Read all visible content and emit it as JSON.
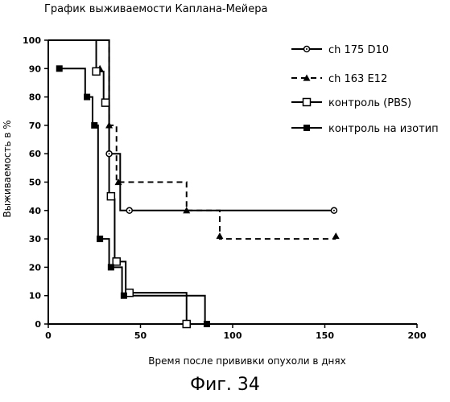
{
  "title": "График выживаемости Каплана-Мейера",
  "caption": "Фиг. 34",
  "chart_data": {
    "type": "line",
    "title": "График выживаемости Каплана-Мейера",
    "xlabel": "Время после прививки опухоли в днях",
    "ylabel": "Выживаемость в %",
    "xlim": [
      0,
      200
    ],
    "ylim": [
      0,
      100
    ],
    "xticks": [
      0,
      50,
      100,
      150,
      200
    ],
    "yticks": [
      0,
      10,
      20,
      30,
      40,
      50,
      60,
      70,
      80,
      90,
      100
    ],
    "grid": false,
    "legend_position": "top-right",
    "series": [
      {
        "name": "ch 175 D10",
        "marker": "circle-dot",
        "dash": false,
        "steps": [
          [
            0,
            100
          ],
          [
            33,
            100
          ],
          [
            33,
            60
          ],
          [
            39,
            60
          ],
          [
            39,
            40
          ],
          [
            155,
            40
          ]
        ],
        "markers": [
          [
            33,
            60
          ],
          [
            44,
            40
          ],
          [
            155,
            40
          ]
        ]
      },
      {
        "name": "ch 163 E12",
        "marker": "triangle",
        "dash": true,
        "steps": [
          [
            0,
            100
          ],
          [
            33,
            100
          ],
          [
            33,
            70
          ],
          [
            37,
            70
          ],
          [
            37,
            50
          ],
          [
            75,
            50
          ],
          [
            75,
            40
          ],
          [
            93,
            40
          ],
          [
            93,
            30
          ],
          [
            156,
            30
          ]
        ],
        "markers": [
          [
            28,
            90
          ],
          [
            33,
            70
          ],
          [
            38,
            50
          ],
          [
            75,
            40
          ],
          [
            93,
            31
          ],
          [
            156,
            31
          ]
        ]
      },
      {
        "name": "контроль (PBS)",
        "marker": "square-open",
        "dash": false,
        "steps": [
          [
            0,
            100
          ],
          [
            26,
            100
          ],
          [
            26,
            89
          ],
          [
            30,
            89
          ],
          [
            30,
            78
          ],
          [
            33,
            78
          ],
          [
            33,
            44
          ],
          [
            36,
            44
          ],
          [
            36,
            22
          ],
          [
            42,
            22
          ],
          [
            42,
            11
          ],
          [
            75,
            11
          ],
          [
            75,
            0
          ]
        ],
        "markers": [
          [
            26,
            89
          ],
          [
            31,
            78
          ],
          [
            34,
            45
          ],
          [
            37,
            22
          ],
          [
            44,
            11
          ],
          [
            75,
            0
          ]
        ]
      },
      {
        "name": "контроль на изотип",
        "marker": "square-filled",
        "dash": false,
        "steps": [
          [
            6,
            90
          ],
          [
            20,
            90
          ],
          [
            20,
            80
          ],
          [
            24,
            80
          ],
          [
            24,
            70
          ],
          [
            27,
            70
          ],
          [
            27,
            30
          ],
          [
            33,
            30
          ],
          [
            33,
            20
          ],
          [
            40,
            20
          ],
          [
            40,
            10
          ],
          [
            85,
            10
          ],
          [
            85,
            0
          ]
        ],
        "markers": [
          [
            6,
            90
          ],
          [
            21,
            80
          ],
          [
            25,
            70
          ],
          [
            28,
            30
          ],
          [
            34,
            20
          ],
          [
            41,
            10
          ],
          [
            86,
            0
          ]
        ]
      }
    ]
  }
}
